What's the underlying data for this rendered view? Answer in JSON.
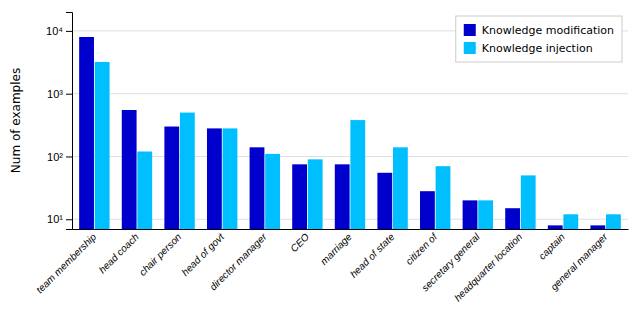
{
  "chart_data": {
    "type": "bar",
    "categories": [
      "team membership",
      "head coach",
      "chair person",
      "head of govt",
      "director manager",
      "CEO",
      "marriage",
      "head of state",
      "citizen of",
      "secretary general",
      "headquarter location",
      "captain",
      "general manager"
    ],
    "series": [
      {
        "name": "Knowledge modification",
        "color": "#0000CC",
        "values": [
          8000,
          550,
          300,
          280,
          140,
          75,
          75,
          55,
          28,
          20,
          15,
          8,
          8
        ]
      },
      {
        "name": "Knowledge injection",
        "color": "#00BFFF",
        "values": [
          3200,
          120,
          500,
          280,
          110,
          90,
          380,
          140,
          70,
          20,
          50,
          12,
          12
        ]
      }
    ],
    "ylabel": "Num of examples",
    "log": "y",
    "ylim": [
      7,
      20000
    ],
    "yticks": [
      {
        "value": 10,
        "label": "10¹"
      },
      {
        "value": 100,
        "label": "10²"
      },
      {
        "value": 1000,
        "label": "10³"
      },
      {
        "value": 10000,
        "label": "10⁴"
      }
    ],
    "grid": true,
    "legend": "upper right"
  }
}
